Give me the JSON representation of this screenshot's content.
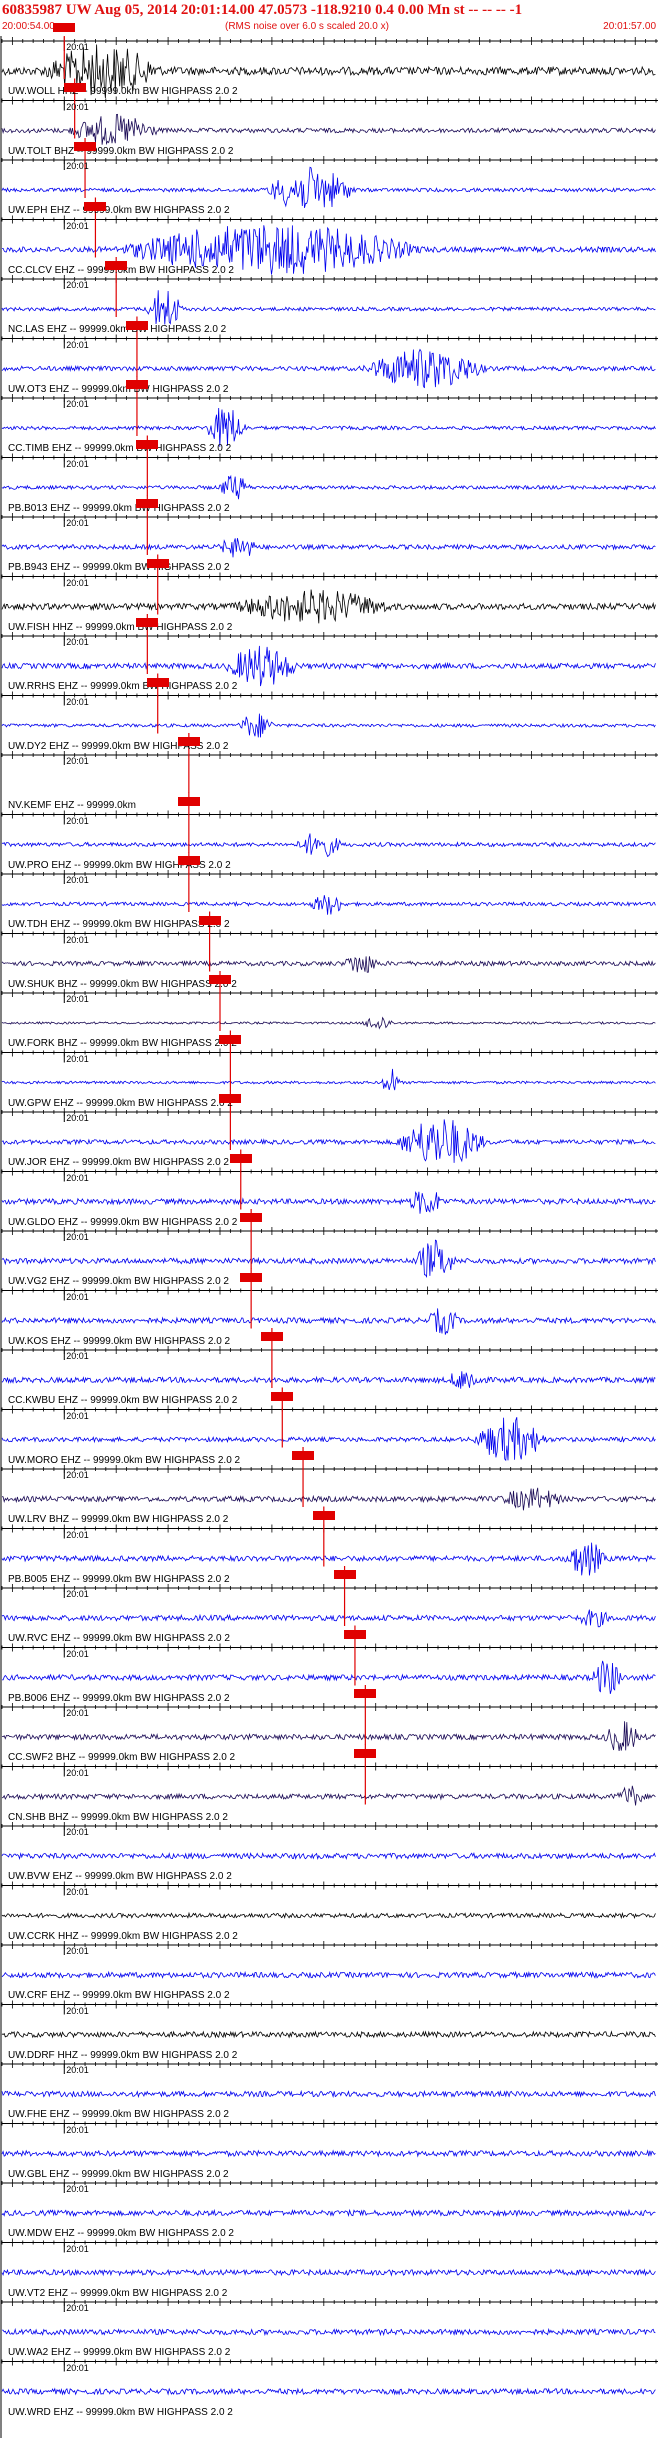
{
  "header": {
    "title": "60835987 UW Aug 05, 2014 20:01:14.00   47.0573 -118.9210  0.4 0.00 Mn st -- -- --  -1",
    "start_time": "20:00:54.00",
    "subtitle": "(RMS noise over 6.0 s scaled 20.0 x)",
    "end_time": "20:01:57.00"
  },
  "chart_data": {
    "type": "line",
    "title": "60835987 UW Aug 05, 2014 20:01:14.00   47.0573 -118.9210  0.4 0.00 Mn st -- -- --  -1",
    "x_start": "20:00:54.00",
    "x_end": "20:01:57.00",
    "minute_tick_label": "20:01",
    "minute_tick_time": "20:01:00",
    "colors": {
      "header": "#e01010",
      "pick": "#e00000",
      "trace_blue": "#0000ee",
      "trace_dark": "#1a0a55",
      "trace_black": "#000000"
    },
    "traces": [
      {
        "label": "UW.WOLL HHZ -- 99999.0km BW  HIGHPASS  2.0  2",
        "pick_time": "20:01:00",
        "color": "black",
        "amp": 0.45,
        "burst": [
          0.06,
          0.32,
          1.0
        ]
      },
      {
        "label": "UW.TOLT BHZ -- 99999.0km BW  HIGHPASS  2.0  2",
        "pick_time": "20:01:01",
        "color": "dark",
        "amp": 0.25,
        "burst": [
          0.1,
          0.3,
          0.6
        ]
      },
      {
        "label": "UW.EPH EHZ -- 99999.0km BW  HIGHPASS  2.0  2",
        "pick_time": "20:01:02",
        "color": "blue",
        "amp": 0.2,
        "burst": [
          0.4,
          0.6,
          0.9
        ]
      },
      {
        "label": "CC.CLCV EHZ -- 99999.0km BW  HIGHPASS  2.0  2",
        "pick_time": "20:01:03",
        "color": "blue",
        "amp": 0.3,
        "burst": [
          0.17,
          0.84,
          1.0
        ]
      },
      {
        "label": "NC.LAS EHZ -- 99999.0km BW  HIGHPASS  2.0  2",
        "pick_time": "20:01:05",
        "color": "blue",
        "amp": 0.2,
        "burst": [
          0.22,
          0.3,
          0.9
        ]
      },
      {
        "label": "UW.OT3 EHZ -- 99999.0km BW  HIGHPASS  2.0  2",
        "pick_time": "20:01:07",
        "color": "blue",
        "amp": 0.25,
        "burst": [
          0.55,
          0.82,
          0.8
        ]
      },
      {
        "label": "CC.TIMB EHZ -- 99999.0km BW  HIGHPASS  2.0  2",
        "pick_time": "20:01:07",
        "color": "blue",
        "amp": 0.2,
        "burst": [
          0.31,
          0.4,
          0.9
        ]
      },
      {
        "label": "PB.B013 EHZ -- 99999.0km BW  HIGHPASS  2.0  2",
        "pick_time": "20:01:08",
        "color": "blue",
        "amp": 0.2,
        "burst": [
          0.33,
          0.4,
          0.5
        ]
      },
      {
        "label": "PB.B943 EHZ -- 99999.0km BW  HIGHPASS  2.0  2",
        "pick_time": "20:01:08",
        "color": "blue",
        "amp": 0.25,
        "burst": [
          0.33,
          0.42,
          0.4
        ]
      },
      {
        "label": "UW.FISH HHZ -- 99999.0km BW  HIGHPASS  2.0  2",
        "pick_time": "20:01:09",
        "color": "black",
        "amp": 0.35,
        "burst": [
          0.35,
          0.7,
          0.6
        ]
      },
      {
        "label": "UW.RRHS EHZ -- 99999.0km BW  HIGHPASS  2.0  2",
        "pick_time": "20:01:08",
        "color": "blue",
        "amp": 0.3,
        "burst": [
          0.34,
          0.5,
          0.8
        ]
      },
      {
        "label": "UW.DY2 EHZ -- 99999.0km BW  HIGHPASS  2.0  2",
        "pick_time": "20:01:09",
        "color": "blue",
        "amp": 0.18,
        "burst": [
          0.36,
          0.44,
          0.5
        ]
      },
      {
        "label": "NV.KEMF EHZ -- 99999.0km",
        "pick_time": "20:01:12",
        "color": "blue",
        "amp": 0.0,
        "burst": [
          0,
          0,
          0
        ]
      },
      {
        "label": "UW.PRO EHZ -- 99999.0km BW  HIGHPASS  2.0  2",
        "pick_time": "20:01:12",
        "color": "blue",
        "amp": 0.22,
        "burst": [
          0.45,
          0.55,
          0.5
        ]
      },
      {
        "label": "UW.TDH EHZ -- 99999.0km BW  HIGHPASS  2.0  2",
        "pick_time": "20:01:12",
        "color": "blue",
        "amp": 0.2,
        "burst": [
          0.47,
          0.55,
          0.4
        ]
      },
      {
        "label": "UW.SHUK BHZ -- 99999.0km BW  HIGHPASS  2.0  2",
        "pick_time": "20:01:14",
        "color": "dark",
        "amp": 0.25,
        "burst": [
          0.52,
          0.6,
          0.4
        ]
      },
      {
        "label": "UW.FORK BHZ -- 99999.0km BW  HIGHPASS  2.0  2",
        "pick_time": "20:01:15",
        "color": "dark",
        "amp": 0.12,
        "burst": [
          0.55,
          0.62,
          0.3
        ]
      },
      {
        "label": "UW.GPW EHZ -- 99999.0km BW  HIGHPASS  2.0  2",
        "pick_time": "20:01:16",
        "color": "blue",
        "amp": 0.15,
        "burst": [
          0.58,
          0.62,
          0.6
        ]
      },
      {
        "label": "UW.JOR EHZ -- 99999.0km BW  HIGHPASS  2.0  2",
        "pick_time": "20:01:16",
        "color": "blue",
        "amp": 0.25,
        "burst": [
          0.6,
          0.8,
          1.0
        ]
      },
      {
        "label": "UW.GLDO EHZ -- 99999.0km BW  HIGHPASS  2.0  2",
        "pick_time": "20:01:17",
        "color": "blue",
        "amp": 0.3,
        "burst": [
          0.62,
          0.7,
          0.5
        ]
      },
      {
        "label": "UW.VG2 EHZ -- 99999.0km BW  HIGHPASS  2.0  2",
        "pick_time": "20:01:18",
        "color": "blue",
        "amp": 0.3,
        "burst": [
          0.63,
          0.72,
          0.8
        ]
      },
      {
        "label": "UW.KOS EHZ -- 99999.0km BW  HIGHPASS  2.0  2",
        "pick_time": "20:01:18",
        "color": "blue",
        "amp": 0.3,
        "burst": [
          0.65,
          0.72,
          0.5
        ]
      },
      {
        "label": "CC.KWBU EHZ -- 99999.0km BW  HIGHPASS  2.0  2",
        "pick_time": "20:01:20",
        "color": "blue",
        "amp": 0.3,
        "burst": [
          0.68,
          0.76,
          0.4
        ]
      },
      {
        "label": "UW.MORO EHZ -- 99999.0km BW  HIGHPASS  2.0  2",
        "pick_time": "20:01:21",
        "color": "blue",
        "amp": 0.25,
        "burst": [
          0.72,
          0.88,
          0.9
        ]
      },
      {
        "label": "UW.LRV BHZ -- 99999.0km BW  HIGHPASS  2.0  2",
        "pick_time": "20:01:23",
        "color": "dark",
        "amp": 0.3,
        "burst": [
          0.76,
          0.9,
          0.4
        ]
      },
      {
        "label": "PB.B005 EHZ -- 99999.0km BW  HIGHPASS  2.0  2",
        "pick_time": "20:01:25",
        "color": "blue",
        "amp": 0.3,
        "burst": [
          0.86,
          0.95,
          0.7
        ]
      },
      {
        "label": "UW.RVC EHZ -- 99999.0km BW  HIGHPASS  2.0  2",
        "pick_time": "20:01:27",
        "color": "blue",
        "amp": 0.3,
        "burst": [
          0.88,
          0.95,
          0.3
        ]
      },
      {
        "label": "PB.B006 EHZ -- 99999.0km BW  HIGHPASS  2.0  2",
        "pick_time": "20:01:28",
        "color": "blue",
        "amp": 0.3,
        "burst": [
          0.9,
          0.97,
          0.7
        ]
      },
      {
        "label": "CC.SWF2 BHZ -- 99999.0km BW  HIGHPASS  2.0  2",
        "pick_time": "20:01:29",
        "color": "dark",
        "amp": 0.3,
        "burst": [
          0.92,
          1.0,
          0.6
        ]
      },
      {
        "label": "CN.SHB BHZ -- 99999.0km BW  HIGHPASS  2.0  2",
        "pick_time": "20:01:29",
        "color": "dark",
        "amp": 0.28,
        "burst": [
          0.94,
          1.0,
          0.4
        ]
      },
      {
        "label": "UW.BVW EHZ -- 99999.0km BW  HIGHPASS  2.0  2",
        "pick_time": null,
        "color": "blue",
        "amp": 0.3,
        "burst": [
          0,
          0,
          0
        ]
      },
      {
        "label": "UW.CCRK HHZ -- 99999.0km BW  HIGHPASS  2.0  2",
        "pick_time": null,
        "color": "black",
        "amp": 0.25,
        "burst": [
          0,
          0,
          0
        ]
      },
      {
        "label": "UW.CRF EHZ -- 99999.0km BW  HIGHPASS  2.0  2",
        "pick_time": null,
        "color": "blue",
        "amp": 0.3,
        "burst": [
          0,
          0,
          0
        ]
      },
      {
        "label": "UW.DDRF HHZ -- 99999.0km BW  HIGHPASS  2.0  2",
        "pick_time": null,
        "color": "black",
        "amp": 0.3,
        "burst": [
          0,
          0,
          0
        ]
      },
      {
        "label": "UW.FHE EHZ -- 99999.0km BW  HIGHPASS  2.0  2",
        "pick_time": null,
        "color": "blue",
        "amp": 0.3,
        "burst": [
          0,
          0,
          0
        ]
      },
      {
        "label": "UW.GBL EHZ -- 99999.0km BW  HIGHPASS  2.0  2",
        "pick_time": null,
        "color": "blue",
        "amp": 0.3,
        "burst": [
          0,
          0,
          0
        ]
      },
      {
        "label": "UW.MDW EHZ -- 99999.0km BW  HIGHPASS  2.0  2",
        "pick_time": null,
        "color": "blue",
        "amp": 0.3,
        "burst": [
          0,
          0,
          0
        ]
      },
      {
        "label": "UW.VT2 EHZ -- 99999.0km BW  HIGHPASS  2.0  2",
        "pick_time": null,
        "color": "blue",
        "amp": 0.3,
        "burst": [
          0,
          0,
          0
        ]
      },
      {
        "label": "UW.WA2 EHZ -- 99999.0km BW  HIGHPASS  2.0  2",
        "pick_time": null,
        "color": "blue",
        "amp": 0.3,
        "burst": [
          0,
          0,
          0
        ]
      },
      {
        "label": "UW.WRD EHZ -- 99999.0km BW  HIGHPASS  2.0  2",
        "pick_time": null,
        "color": "blue",
        "amp": 0.3,
        "burst": [
          0,
          0,
          0
        ]
      }
    ]
  }
}
